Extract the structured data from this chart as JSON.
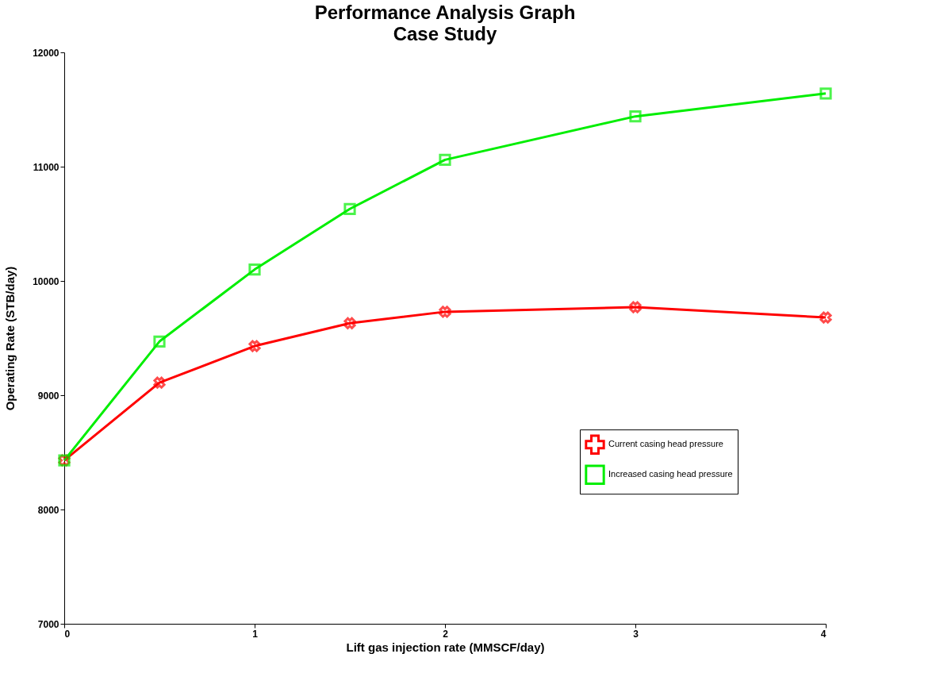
{
  "chart_data": {
    "type": "line",
    "title": "Performance Analysis Graph",
    "subtitle": "Case Study",
    "xlabel": "Lift gas injection rate (MMSCF/day)",
    "ylabel": "Operating Rate (STB/day)",
    "xlim": [
      0,
      4
    ],
    "xticks": [
      0,
      1,
      2,
      3,
      4
    ],
    "ylim": [
      7000,
      12000
    ],
    "yticks": [
      7000,
      8000,
      9000,
      10000,
      11000,
      12000
    ],
    "grid": false,
    "legend": "right",
    "series": [
      {
        "name": "Current casing head pressure",
        "color": "#ff0000",
        "marker": "cross",
        "x": [
          0,
          0.5,
          1,
          1.5,
          2,
          3,
          4
        ],
        "values": [
          8430,
          9110,
          9430,
          9630,
          9730,
          9770,
          9680
        ]
      },
      {
        "name": "Increased casing head pressure",
        "color": "#00ee00",
        "marker": "square",
        "x": [
          0,
          0.5,
          1,
          1.5,
          2,
          3,
          4
        ],
        "values": [
          8430,
          9470,
          10100,
          10630,
          11060,
          11440,
          11640
        ]
      }
    ]
  }
}
